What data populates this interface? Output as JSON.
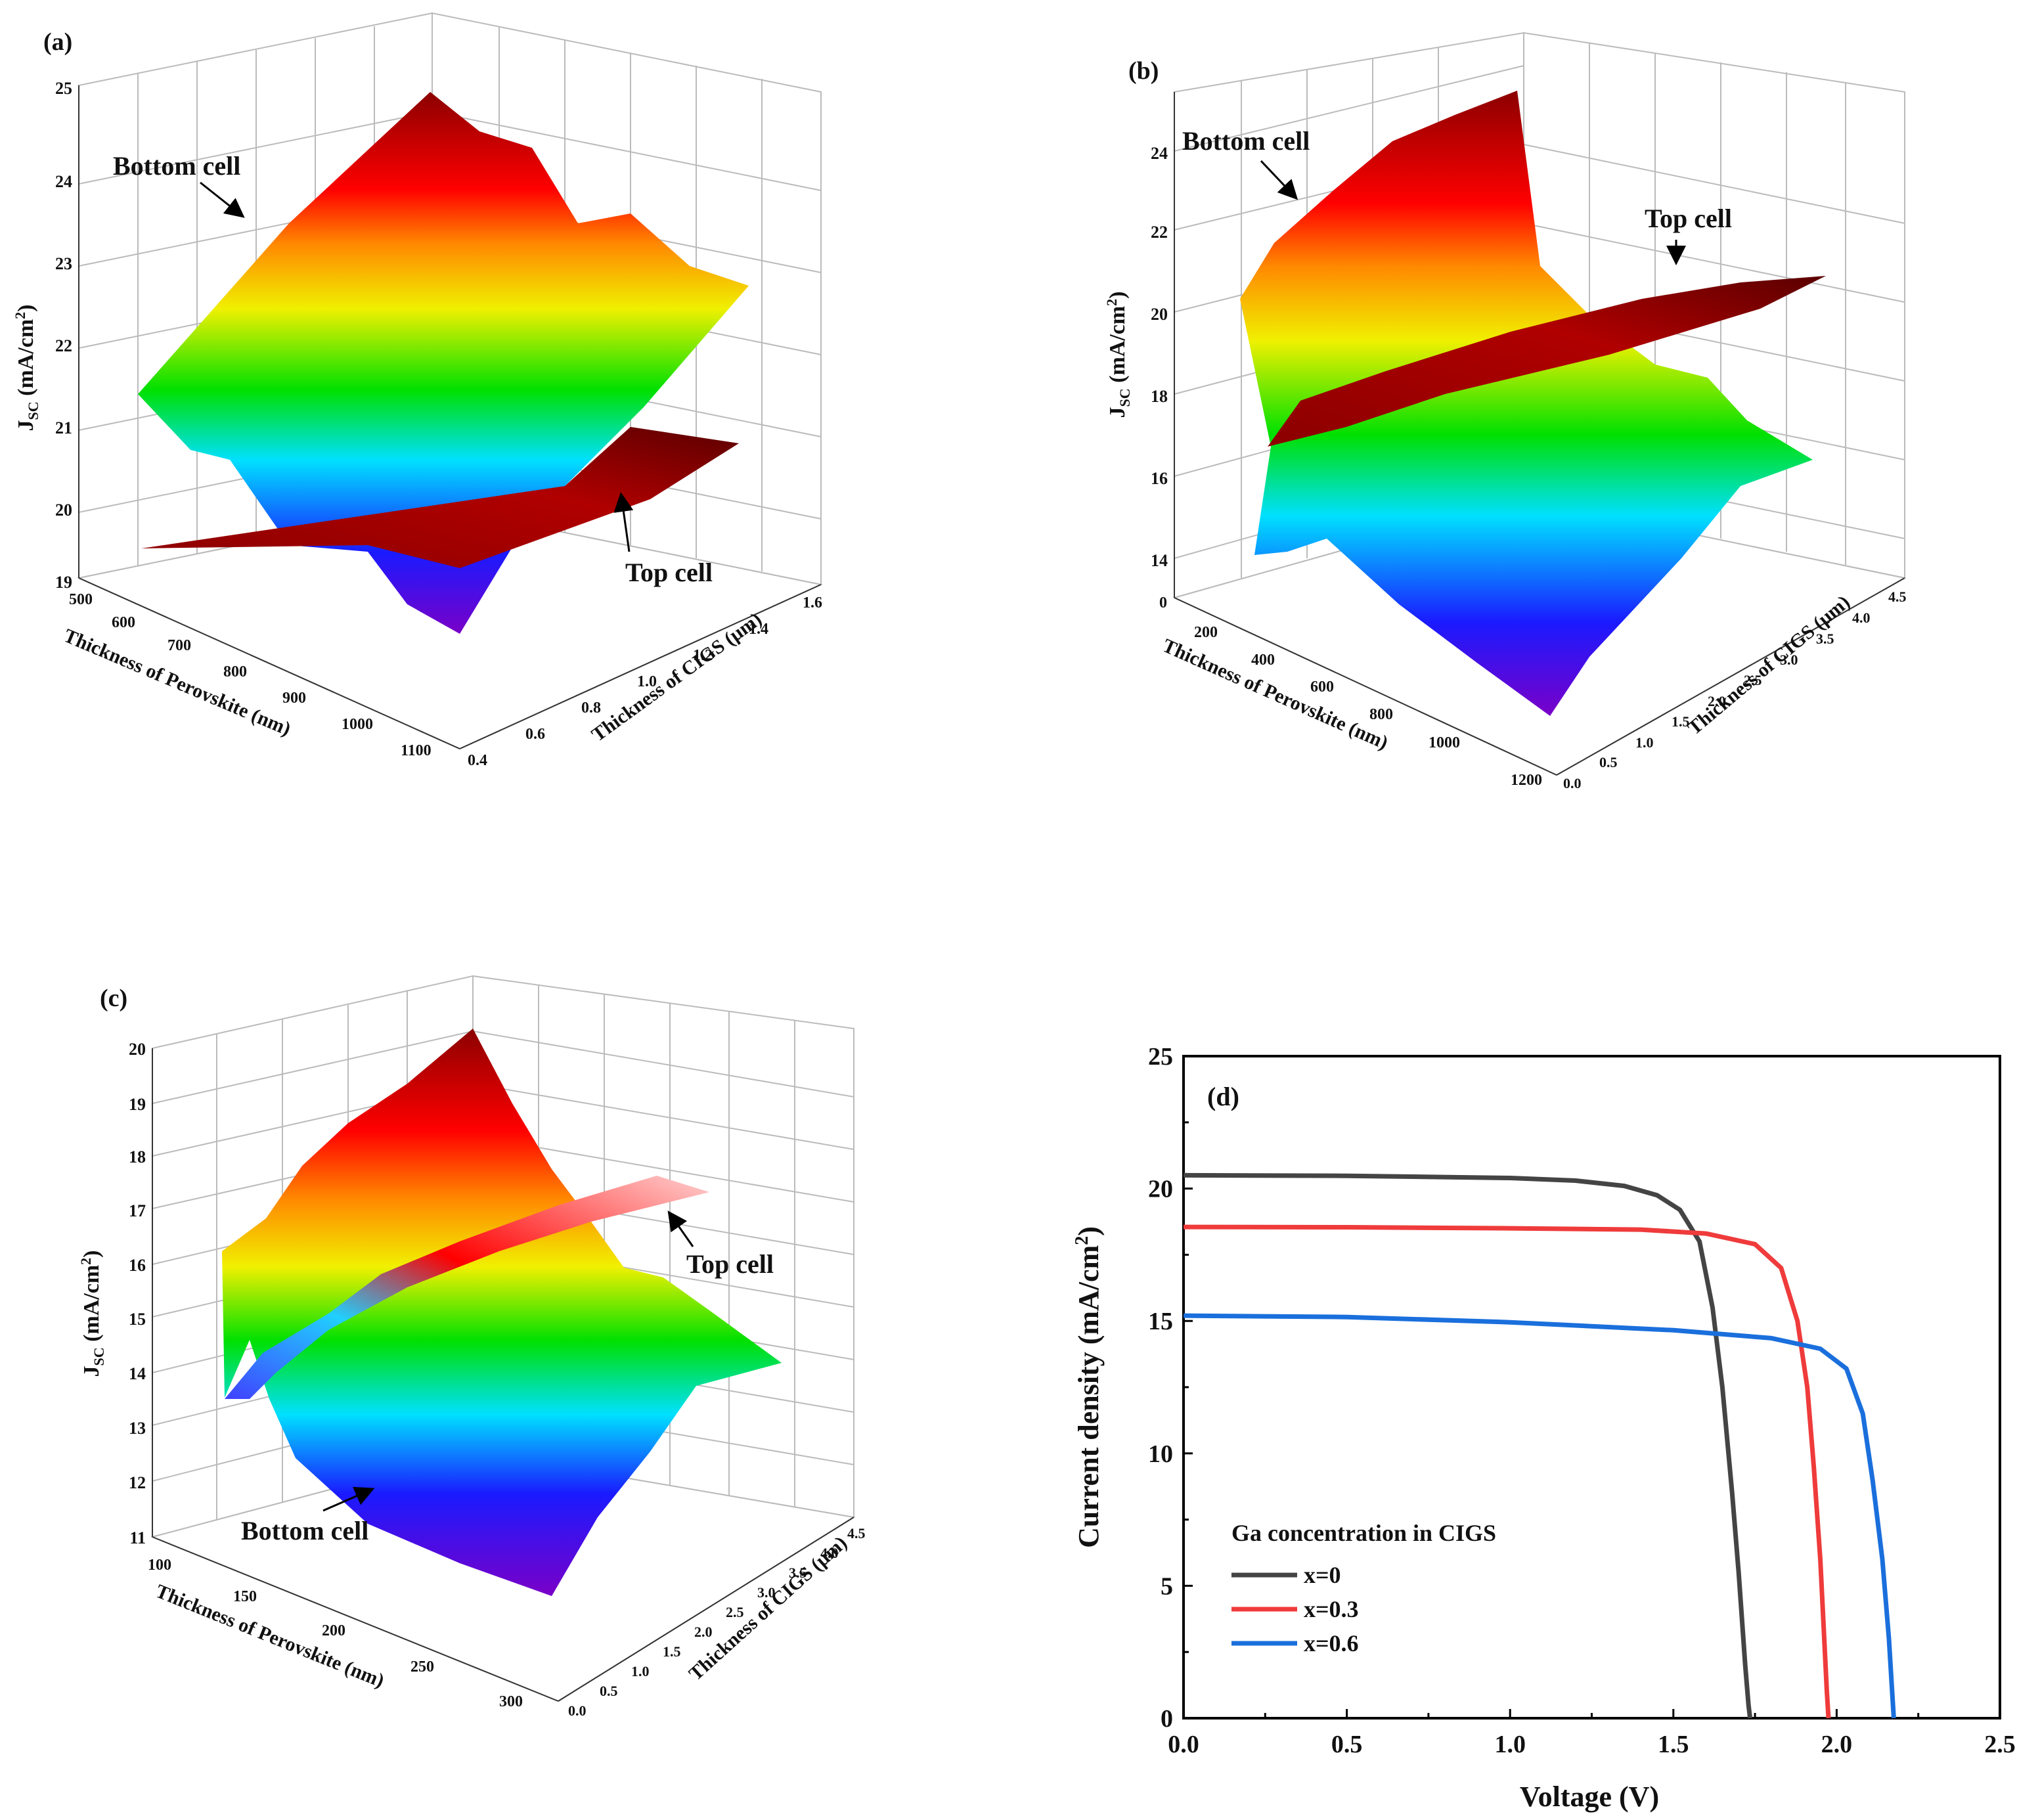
{
  "figure": {
    "panels": [
      {
        "id": "a",
        "label": "(a)",
        "type": "surface3d",
        "z_label": "J",
        "z_label_sub": "SC",
        "z_label_unit": " (mA/cm",
        "z_label_sup": "2",
        "z_label_end": ")",
        "x_label": "Thickness of Perovskite (nm)",
        "y_label": "Thickness of CIGS (μm)",
        "z_ticks": [
          "19",
          "20",
          "21",
          "22",
          "23",
          "24",
          "25"
        ],
        "x_ticks": [
          "500",
          "600",
          "700",
          "800",
          "900",
          "1000",
          "1100"
        ],
        "y_ticks": [
          "0.4",
          "0.6",
          "0.8",
          "1.0",
          "1.2",
          "1.4",
          "1.6"
        ],
        "annotations": [
          "Bottom cell",
          "Top cell"
        ]
      },
      {
        "id": "b",
        "label": "(b)",
        "type": "surface3d",
        "z_label": "J",
        "z_label_sub": "SC",
        "z_label_unit": " (mA/cm",
        "z_label_sup": "2",
        "z_label_end": ")",
        "x_label": "Thickness of Perovskite (nm)",
        "y_label": "Thickness of CIGS (μm)",
        "z_ticks": [
          "14",
          "16",
          "18",
          "20",
          "22",
          "24"
        ],
        "x_ticks": [
          "0",
          "200",
          "400",
          "600",
          "800",
          "1000",
          "1200"
        ],
        "y_ticks": [
          "0.0",
          "0.5",
          "1.0",
          "1.5",
          "2.0",
          "2.5",
          "3.0",
          "3.5",
          "4.0",
          "4.5"
        ],
        "annotations": [
          "Bottom cell",
          "Top cell"
        ]
      },
      {
        "id": "c",
        "label": "(c)",
        "type": "surface3d",
        "z_label": "J",
        "z_label_sub": "SC",
        "z_label_unit": " (mA/cm",
        "z_label_sup": "2",
        "z_label_end": ")",
        "x_label": "Thickness of Perovskite (nm)",
        "y_label": "Thickness of CIGS (μm)",
        "z_ticks": [
          "11",
          "12",
          "13",
          "14",
          "15",
          "16",
          "17",
          "18",
          "19",
          "20"
        ],
        "x_ticks": [
          "100",
          "150",
          "200",
          "250",
          "300"
        ],
        "y_ticks": [
          "0.0",
          "0.5",
          "1.0",
          "1.5",
          "2.0",
          "2.5",
          "3.0",
          "3.5",
          "4.0",
          "4.5"
        ],
        "annotations": [
          "Top cell",
          "Bottom cell"
        ]
      }
    ],
    "colors": {
      "x0": "#444444",
      "x03": "#ef3b3b",
      "x06": "#1a6fdc",
      "top_surface": "#8b0000"
    }
  },
  "chart_data": {
    "type": "line",
    "panel_label": "(d)",
    "title": "",
    "xlabel": "Voltage (V)",
    "ylabel_main": "Current density (mA/cm",
    "ylabel_sup": "2",
    "ylabel_end": ")",
    "xlim": [
      0,
      2.5
    ],
    "ylim": [
      0,
      25
    ],
    "x_ticks": [
      "0.0",
      "0.5",
      "1.0",
      "1.5",
      "2.0",
      "2.5"
    ],
    "y_ticks": [
      "0",
      "5",
      "10",
      "15",
      "20",
      "25"
    ],
    "legend_title": "Ga concentration in CIGS",
    "legend_position": "bottom-left",
    "series": [
      {
        "name": "x=0",
        "color": "#444444",
        "x": [
          0,
          0.5,
          1.0,
          1.2,
          1.35,
          1.45,
          1.52,
          1.58,
          1.62,
          1.65,
          1.68,
          1.7,
          1.72,
          1.73,
          1.735
        ],
        "y": [
          20.5,
          20.48,
          20.4,
          20.3,
          20.1,
          19.75,
          19.2,
          18.0,
          15.5,
          12.5,
          8.5,
          5.5,
          2.0,
          0.5,
          0
        ]
      },
      {
        "name": "x=0.3",
        "color": "#ef3b3b",
        "x": [
          0,
          0.5,
          1.0,
          1.4,
          1.6,
          1.75,
          1.83,
          1.88,
          1.91,
          1.93,
          1.95,
          1.96,
          1.97,
          1.975
        ],
        "y": [
          18.55,
          18.54,
          18.5,
          18.45,
          18.3,
          17.9,
          17.0,
          15.0,
          12.5,
          9.5,
          6.0,
          3.5,
          1.0,
          0
        ]
      },
      {
        "name": "x=0.6",
        "color": "#1a6fdc",
        "x": [
          0,
          0.5,
          1.0,
          1.5,
          1.8,
          1.95,
          2.03,
          2.08,
          2.11,
          2.14,
          2.16,
          2.17,
          2.175
        ],
        "y": [
          15.2,
          15.15,
          14.95,
          14.65,
          14.35,
          13.95,
          13.2,
          11.5,
          9.0,
          6.0,
          3.0,
          1.0,
          0
        ]
      }
    ]
  }
}
